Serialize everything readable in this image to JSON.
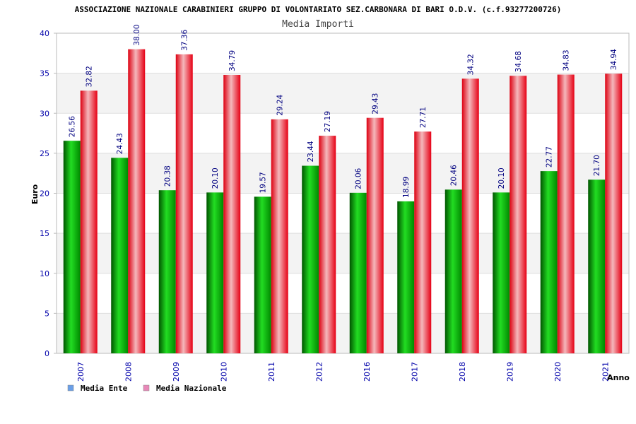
{
  "chart_data": {
    "type": "bar",
    "title": "ASSOCIAZIONE NAZIONALE CARABINIERI GRUPPO DI VOLONTARIATO SEZ.CARBONARA DI BARI O.D.V. (c.f.93277200726)",
    "subtitle": "Media Importi",
    "xlabel": "Anno",
    "ylabel": "Euro",
    "ylim": [
      0,
      40
    ],
    "yticks": [
      0,
      5,
      10,
      15,
      20,
      25,
      30,
      35,
      40
    ],
    "grid": true,
    "legend_position": "bottom-left",
    "categories": [
      "2007",
      "2008",
      "2009",
      "2010",
      "2011",
      "2012",
      "2016",
      "2017",
      "2018",
      "2019",
      "2020",
      "2021"
    ],
    "series": [
      {
        "name": "Media Ente",
        "color": "#00bb00",
        "legend_color": "#6a9fe8",
        "values": [
          26.56,
          24.43,
          20.38,
          20.1,
          19.57,
          23.44,
          20.06,
          18.99,
          20.46,
          20.1,
          22.77,
          21.7
        ],
        "labels": [
          "26.56",
          "24.43",
          "20.38",
          "20.10",
          "19.57",
          "23.44",
          "20.06",
          "18.99",
          "20.46",
          "20.10",
          "22.77",
          "21.70"
        ]
      },
      {
        "name": "Media Nazionale",
        "color": "#ee1122",
        "legend_color": "#e888b8",
        "values": [
          32.82,
          38.0,
          37.36,
          34.79,
          29.24,
          27.19,
          29.43,
          27.71,
          34.32,
          34.68,
          34.83,
          34.94
        ],
        "labels": [
          "32.82",
          "38.00",
          "37.36",
          "34.79",
          "29.24",
          "27.19",
          "29.43",
          "27.71",
          "34.32",
          "34.68",
          "34.83",
          "34.94"
        ]
      }
    ],
    "colors": {
      "tick_text": "#0000aa",
      "value_text": "#000080",
      "band": "#f3f3f3",
      "grid": "#dddddd",
      "axis": "#bbbbbb"
    }
  }
}
